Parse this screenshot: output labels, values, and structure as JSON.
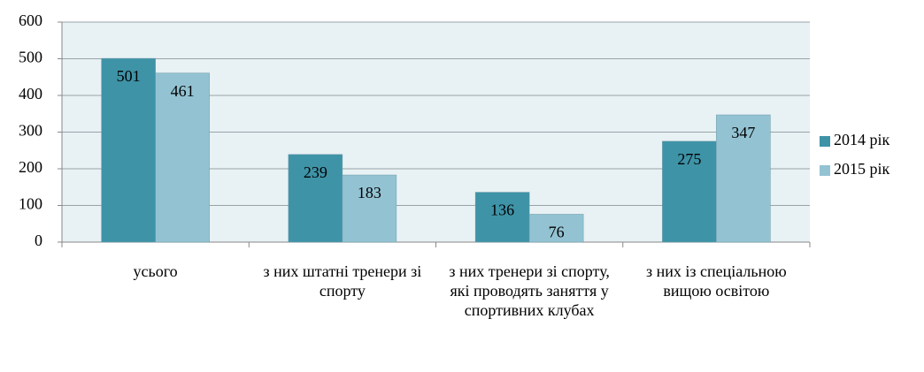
{
  "chart_data": {
    "type": "bar",
    "categories": [
      "усього",
      "з них штатні тренери зі спорту",
      "з них тренери зі спорту, які проводять заняття у спортивних клубах",
      "з них із спеціальною вищою освітою"
    ],
    "series": [
      {
        "name": "2014 рік",
        "color": "#3e93a7",
        "values": [
          501,
          239,
          136,
          275
        ]
      },
      {
        "name": "2015 рік",
        "color": "#93c3d3",
        "values": [
          461,
          183,
          76,
          347
        ]
      }
    ],
    "ylim": [
      0,
      600
    ],
    "yticks": [
      0,
      100,
      200,
      300,
      400,
      500,
      600
    ],
    "grid": true,
    "legend": "right"
  }
}
